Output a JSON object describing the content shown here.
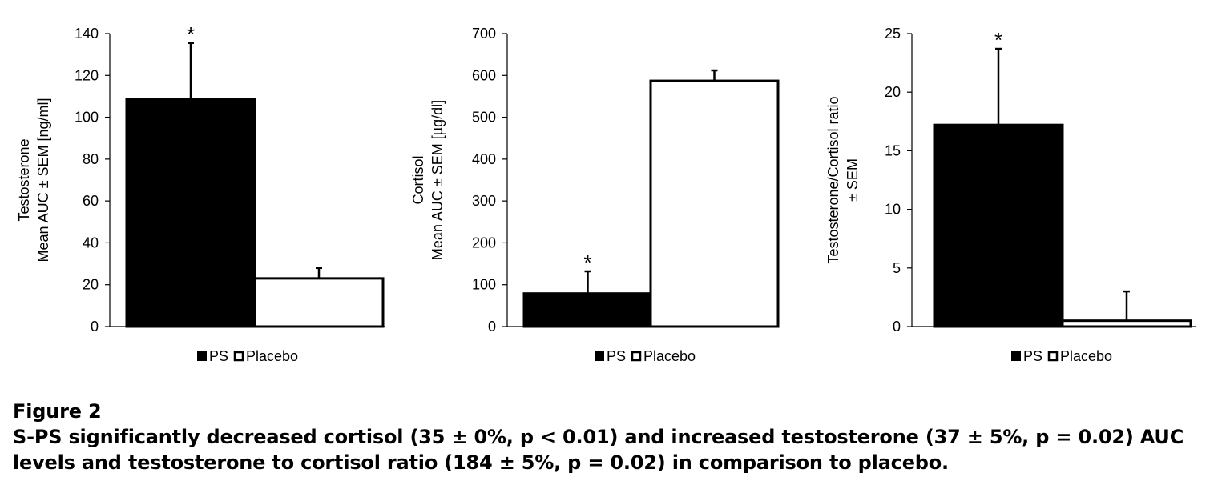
{
  "chart_data": [
    {
      "type": "bar",
      "categories": [
        "PS",
        "Placebo"
      ],
      "values": [
        108.5,
        23
      ],
      "errors": [
        27,
        5
      ],
      "significance": [
        "*",
        ""
      ],
      "ylabel_lines": [
        "Testosterone",
        "Mean AUC ± SEM [ng/ml]"
      ],
      "ylim": [
        0,
        140
      ],
      "yticks": [
        0,
        20,
        40,
        60,
        80,
        100,
        120,
        140
      ],
      "legend": [
        "PS",
        "Placebo"
      ],
      "legend_position": "bottom-center",
      "colors": [
        "#000000",
        "#ffffff"
      ]
    },
    {
      "type": "bar",
      "categories": [
        "PS",
        "Placebo"
      ],
      "values": [
        79,
        587
      ],
      "errors": [
        53,
        25
      ],
      "significance": [
        "*",
        ""
      ],
      "ylabel_lines": [
        "Cortisol",
        "Mean AUC ± SEM [µg/dl]"
      ],
      "ylim": [
        0,
        700
      ],
      "yticks": [
        0,
        100,
        200,
        300,
        400,
        500,
        600,
        700
      ],
      "legend": [
        "PS",
        "Placebo"
      ],
      "legend_position": "bottom-center",
      "colors": [
        "#000000",
        "#ffffff"
      ]
    },
    {
      "type": "bar",
      "categories": [
        "PS",
        "Placebo"
      ],
      "values": [
        17.2,
        0.5
      ],
      "errors": [
        6.5,
        2.5
      ],
      "significance": [
        "*",
        ""
      ],
      "ylabel_lines": [
        "Testosterone/Cortisol ratio",
        "± SEM"
      ],
      "ylim": [
        0,
        25
      ],
      "yticks": [
        0,
        5,
        10,
        15,
        20,
        25
      ],
      "legend": [
        "PS",
        "Placebo"
      ],
      "legend_position": "bottom-center",
      "colors": [
        "#000000",
        "#ffffff"
      ]
    }
  ],
  "caption": {
    "title": "Figure 2",
    "text": "S-PS significantly decreased cortisol (35 ± 0%, p < 0.01) and increased testosterone (37 ± 5%, p = 0.02) AUC levels and testosterone to cortisol ratio (184 ± 5%, p = 0.02) in comparison to placebo."
  }
}
